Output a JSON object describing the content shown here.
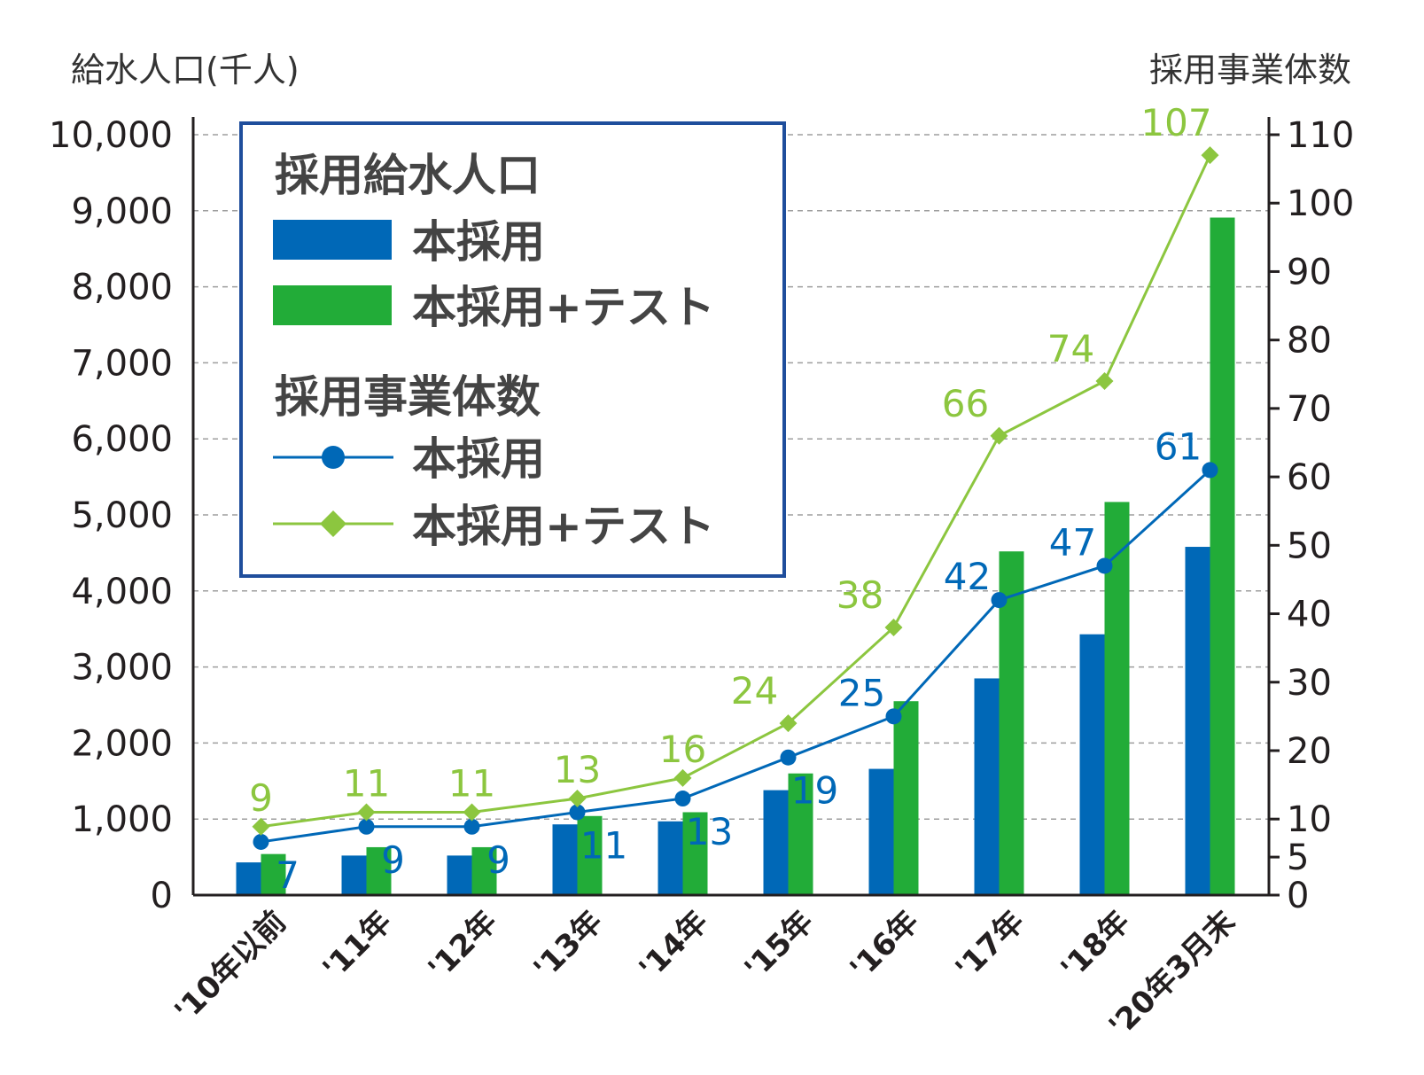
{
  "chart_data": {
    "type": "bar",
    "left_axis_title": "給水人口(千人)",
    "right_axis_title": "採用事業体数",
    "categories": [
      "'10年以前",
      "'11年",
      "'12年",
      "'13年",
      "'14年",
      "'15年",
      "'16年",
      "'17年",
      "'18年",
      "'20年3月末"
    ],
    "left_ticks": [
      {
        "value": 0,
        "label": "0"
      },
      {
        "value": 1000,
        "label": "1,000"
      },
      {
        "value": 2000,
        "label": "2,000"
      },
      {
        "value": 3000,
        "label": "3,000"
      },
      {
        "value": 4000,
        "label": "4,000"
      },
      {
        "value": 5000,
        "label": "5,000"
      },
      {
        "value": 6000,
        "label": "6,000"
      },
      {
        "value": 7000,
        "label": "7,000"
      },
      {
        "value": 8000,
        "label": "8,000"
      },
      {
        "value": 9000,
        "label": "9,000"
      },
      {
        "value": 10000,
        "label": "10,000"
      }
    ],
    "right_ticks": [
      {
        "value": 0,
        "label": "0"
      },
      {
        "value": 5,
        "label": "5"
      },
      {
        "value": 10,
        "label": "10"
      },
      {
        "value": 20,
        "label": "20"
      },
      {
        "value": 30,
        "label": "30"
      },
      {
        "value": 40,
        "label": "40"
      },
      {
        "value": 50,
        "label": "50"
      },
      {
        "value": 60,
        "label": "60"
      },
      {
        "value": 70,
        "label": "70"
      },
      {
        "value": 80,
        "label": "80"
      },
      {
        "value": 90,
        "label": "90"
      },
      {
        "value": 100,
        "label": "100"
      },
      {
        "value": 110,
        "label": "110"
      }
    ],
    "bar_series": [
      {
        "name": "本採用",
        "color": "#0068b7",
        "values": [
          430,
          520,
          520,
          930,
          970,
          1380,
          1660,
          2850,
          3430,
          4580
        ]
      },
      {
        "name": "本採用+テスト",
        "color": "#22ac38",
        "values": [
          540,
          630,
          630,
          1040,
          1090,
          1600,
          2550,
          4520,
          5170,
          8910
        ]
      }
    ],
    "line_series": [
      {
        "name": "本採用",
        "color": "#0068b7",
        "marker": "circle",
        "values": [
          7,
          9,
          9,
          11,
          13,
          19,
          25,
          42,
          47,
          61
        ]
      },
      {
        "name": "本採用+テスト",
        "color": "#8cc63f",
        "marker": "diamond",
        "values": [
          9,
          11,
          11,
          13,
          16,
          24,
          38,
          66,
          74,
          107
        ]
      }
    ],
    "legend": {
      "position": "top-left",
      "bar_heading": "採用給水人口",
      "line_heading": "採用事業体数"
    },
    "grid": true
  }
}
